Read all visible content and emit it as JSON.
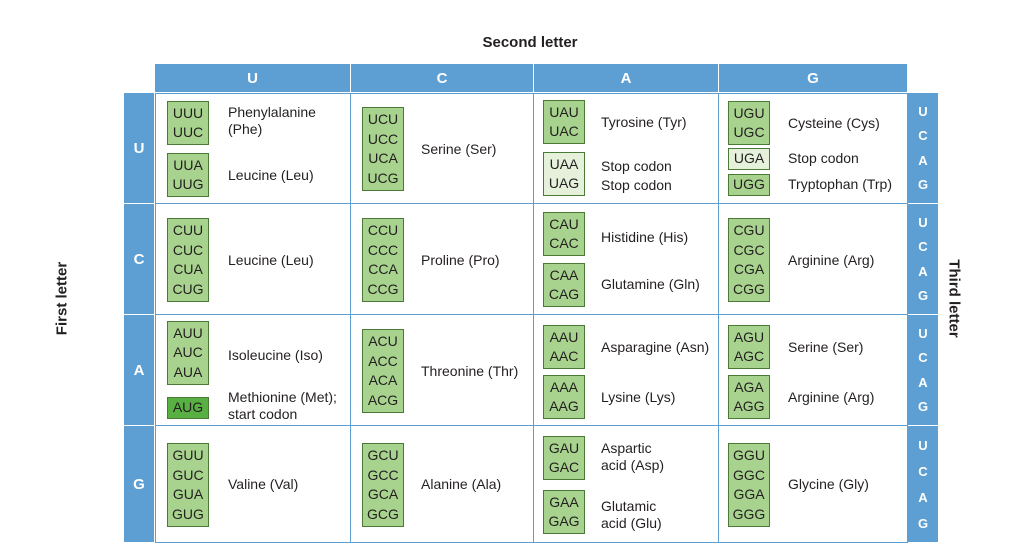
{
  "titles": {
    "second": "Second letter",
    "first": "First letter",
    "third": "Third letter"
  },
  "col_headers": [
    "U",
    "C",
    "A",
    "G"
  ],
  "row_headers": [
    "U",
    "C",
    "A",
    "G"
  ],
  "third_letters": {
    "row_U": [
      "U",
      "C",
      "A",
      "G"
    ],
    "row_C": [
      "U",
      "C",
      "A",
      "G"
    ],
    "row_A": [
      "U",
      "C",
      "A",
      "G"
    ],
    "row_G": [
      "U",
      "C",
      "A",
      "G"
    ]
  },
  "cells": {
    "UU": {
      "codons1": "UUU\nUUC",
      "label1": "Phenylalanine\n(Phe)",
      "codons2": "UUA\nUUG",
      "label2": "Leucine (Leu)"
    },
    "UC": {
      "codons1": "UCU\nUCC\nUCA\nUCG",
      "label1": "Serine (Ser)"
    },
    "UA": {
      "codons1": "UAU\nUAC",
      "label1": "Tyrosine (Tyr)",
      "codons2": "UAA\nUAG",
      "label2": "Stop codon\nStop codon"
    },
    "UG": {
      "codons1": "UGU\nUGC",
      "label1": "Cysteine (Cys)",
      "codons2": "UGA",
      "label2": "Stop codon",
      "codons3": "UGG",
      "label3": "Tryptophan (Trp)"
    },
    "CU": {
      "codons1": "CUU\nCUC\nCUA\nCUG",
      "label1": "Leucine (Leu)"
    },
    "CC": {
      "codons1": "CCU\nCCC\nCCA\nCCG",
      "label1": "Proline (Pro)"
    },
    "CA": {
      "codons1": "CAU\nCAC",
      "label1": "Histidine (His)",
      "codons2": "CAA\nCAG",
      "label2": "Glutamine (Gln)"
    },
    "CG": {
      "codons1": "CGU\nCGC\nCGA\nCGG",
      "label1": "Arginine (Arg)"
    },
    "AU": {
      "codons1": "AUU\nAUC\nAUA",
      "label1": "Isoleucine (Iso)",
      "codons2": "AUG",
      "label2": "Methionine (Met);\nstart codon"
    },
    "AC": {
      "codons1": "ACU\nACC\nACA\nACG",
      "label1": "Threonine (Thr)"
    },
    "AA": {
      "codons1": "AAU\nAAC",
      "label1": "Asparagine (Asn)",
      "codons2": "AAA\nAAG",
      "label2": "Lysine (Lys)"
    },
    "AG": {
      "codons1": "AGU\nAGC",
      "label1": "Serine (Ser)",
      "codons2": "AGA\nAGG",
      "label2": "Arginine (Arg)"
    },
    "GU": {
      "codons1": "GUU\nGUC\nGUA\nGUG",
      "label1": "Valine (Val)"
    },
    "GC": {
      "codons1": "GCU\nGCC\nGCA\nGCG",
      "label1": "Alanine (Ala)"
    },
    "GA": {
      "codons1": "GAU\nGAC",
      "label1": "Aspartic\nacid (Asp)",
      "codons2": "GAA\nGAG",
      "label2": "Glutamic\nacid (Glu)"
    },
    "GG": {
      "codons1": "GGU\nGGC\nGGA\nGGG",
      "label1": "Glycine (Gly)"
    }
  },
  "colors": {
    "header_blue": "#5d9fd2",
    "codon_green": "#a8d38e",
    "stop_green": "#e6f1dc",
    "start_green": "#58b042"
  }
}
